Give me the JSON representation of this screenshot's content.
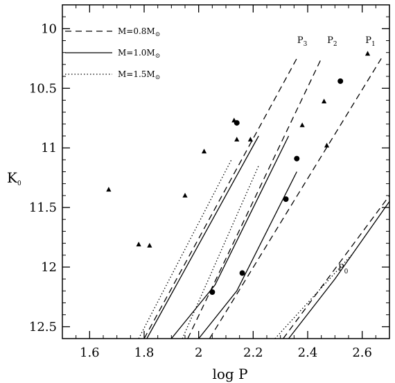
{
  "chart_data": {
    "type": "scatter",
    "title": "",
    "xlabel": "log P",
    "ylabel": "K",
    "ylabel_sub": "0",
    "xlim": [
      1.5,
      2.7
    ],
    "ylim": [
      9.8,
      12.6
    ],
    "y_inverted": true,
    "x_ticks": [
      1.6,
      1.8,
      2.0,
      2.2,
      2.4,
      2.6
    ],
    "x_tick_labels": [
      "1.6",
      "1.8",
      "2",
      "2.2",
      "2.4",
      "2.6"
    ],
    "y_ticks": [
      10,
      10.5,
      11,
      11.5,
      12,
      12.5
    ],
    "y_tick_labels": [
      "10",
      "10.5",
      "11",
      "11.5",
      "12",
      "12.5"
    ],
    "grid": false,
    "legend_position": "top-left",
    "legend": [
      {
        "name": "M=0.8M",
        "sub": "⊙",
        "style": "dashed"
      },
      {
        "name": "M=1.0M",
        "sub": "⊙",
        "style": "solid"
      },
      {
        "name": "M=1.5M",
        "sub": "⊙",
        "style": "dotted"
      }
    ],
    "sequence_labels": [
      {
        "text": "P",
        "sub": "3",
        "x": 2.38,
        "y": 10.12
      },
      {
        "text": "P",
        "sub": "2",
        "x": 2.49,
        "y": 10.12
      },
      {
        "text": "P",
        "sub": "1",
        "x": 2.63,
        "y": 10.12
      },
      {
        "text": "P",
        "sub": "0",
        "x": 2.53,
        "y": 12.03
      }
    ],
    "lines": [
      {
        "style": "dashed",
        "points": [
          [
            1.8,
            12.6
          ],
          [
            2.36,
            10.25
          ]
        ]
      },
      {
        "style": "solid",
        "points": [
          [
            1.81,
            12.6
          ],
          [
            2.22,
            10.9
          ]
        ]
      },
      {
        "style": "dotted",
        "points": [
          [
            1.78,
            12.6
          ],
          [
            2.12,
            11.1
          ]
        ]
      },
      {
        "style": "dashed",
        "points": [
          [
            1.96,
            12.6
          ],
          [
            2.45,
            10.25
          ]
        ]
      },
      {
        "style": "solid",
        "points": [
          [
            1.9,
            12.6
          ],
          [
            2.06,
            12.15
          ],
          [
            2.33,
            10.9
          ]
        ]
      },
      {
        "style": "dotted",
        "points": [
          [
            1.94,
            12.6
          ],
          [
            2.22,
            11.15
          ]
        ]
      },
      {
        "style": "dashed",
        "points": [
          [
            2.04,
            12.6
          ],
          [
            2.67,
            10.25
          ]
        ]
      },
      {
        "style": "solid",
        "points": [
          [
            2.0,
            12.6
          ],
          [
            2.14,
            12.2
          ],
          [
            2.36,
            11.2
          ]
        ]
      },
      {
        "style": "dashed",
        "points": [
          [
            2.31,
            12.6
          ],
          [
            2.7,
            11.4
          ]
        ]
      },
      {
        "style": "solid",
        "points": [
          [
            2.33,
            12.6
          ],
          [
            2.5,
            12.1
          ],
          [
            2.7,
            11.45
          ]
        ]
      },
      {
        "style": "dotted",
        "points": [
          [
            2.28,
            12.6
          ],
          [
            2.56,
            11.9
          ]
        ]
      }
    ],
    "series": [
      {
        "name": "triangles",
        "marker": "triangle",
        "points": [
          [
            1.67,
            11.35
          ],
          [
            1.78,
            11.81
          ],
          [
            1.82,
            11.82
          ],
          [
            1.95,
            11.4
          ],
          [
            2.02,
            11.03
          ],
          [
            2.13,
            10.77
          ],
          [
            2.14,
            10.93
          ],
          [
            2.19,
            10.93
          ],
          [
            2.38,
            10.81
          ],
          [
            2.46,
            10.61
          ],
          [
            2.47,
            10.98
          ],
          [
            2.62,
            10.21
          ]
        ]
      },
      {
        "name": "circles",
        "marker": "circle",
        "points": [
          [
            2.14,
            10.79
          ],
          [
            2.52,
            10.44
          ],
          [
            2.36,
            11.09
          ],
          [
            2.32,
            11.43
          ],
          [
            2.05,
            12.21
          ],
          [
            2.16,
            12.05
          ]
        ]
      }
    ]
  }
}
